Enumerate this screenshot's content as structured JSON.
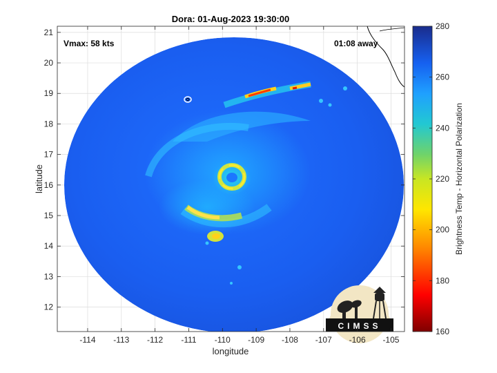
{
  "chart_data": {
    "type": "heatmap",
    "title": "Dora: 01-Aug-2023 19:30:00",
    "xlabel": "longitude",
    "ylabel": "latitude",
    "xlim": [
      -114.9,
      -104.6
    ],
    "ylim": [
      11.2,
      21.2
    ],
    "xticks": [
      -114,
      -113,
      -112,
      -111,
      -110,
      -109,
      -108,
      -107,
      -106,
      -105
    ],
    "yticks": [
      12,
      13,
      14,
      15,
      16,
      17,
      18,
      19,
      20,
      21
    ],
    "grid": true,
    "annotations": {
      "vmax": "Vmax: 58 kts",
      "time_away": "01:08 away"
    },
    "storm_center": {
      "lon": -109.7,
      "lat": 16.1
    },
    "swath_center": {
      "lon": -109.9,
      "lat": 16.0
    },
    "colorbar": {
      "label": "Brightness Temp - Horizontal Polarization",
      "min": 160,
      "max": 280,
      "ticks": [
        160,
        180,
        200,
        220,
        240,
        260,
        280
      ],
      "colormap": "parula-jet"
    },
    "logo": "CIMSS"
  }
}
